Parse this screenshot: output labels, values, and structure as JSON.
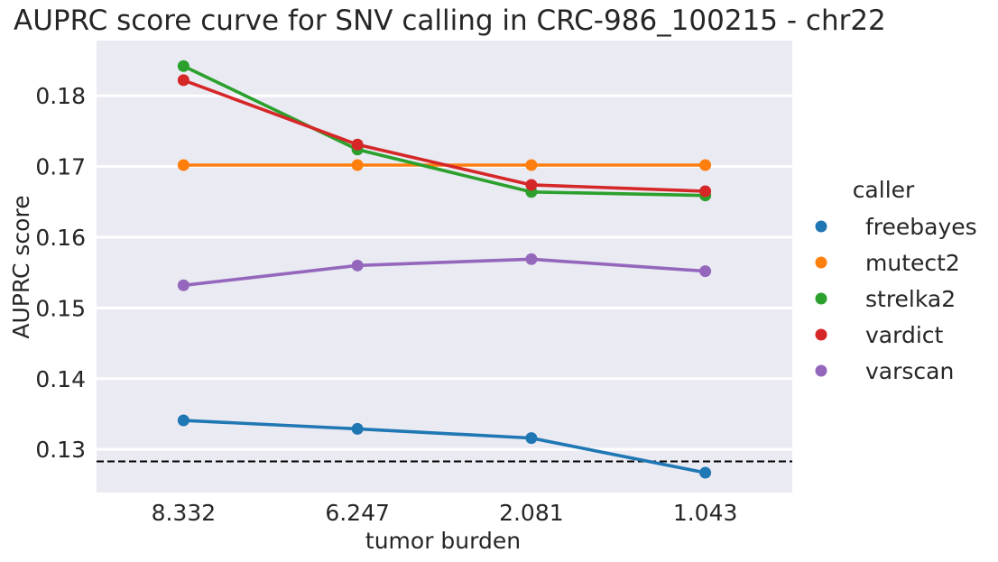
{
  "chart_data": {
    "type": "line",
    "title": "AUPRC score curve for SNV calling in CRC-986_100215 - chr22",
    "xlabel": "tumor burden",
    "ylabel": "AUPRC score",
    "categories": [
      "8.332",
      "6.247",
      "2.081",
      "1.043"
    ],
    "ylim": [
      0.1239,
      0.1878
    ],
    "yticks": [
      0.13,
      0.14,
      0.15,
      0.16,
      0.17,
      0.18
    ],
    "ytick_labels": [
      "0.13",
      "0.14",
      "0.15",
      "0.16",
      "0.17",
      "0.18"
    ],
    "grid": true,
    "legend": {
      "title": "caller",
      "placement": "right"
    },
    "reference_line": {
      "value": 0.1283,
      "style": "dashed",
      "color": "#000000"
    },
    "series": [
      {
        "name": "freebayes",
        "color": "#1f77b4",
        "values": [
          0.1341,
          0.1329,
          0.1316,
          0.1267
        ]
      },
      {
        "name": "mutect2",
        "color": "#ff7f0e",
        "values": [
          0.1702,
          0.1702,
          0.1702,
          0.1702
        ]
      },
      {
        "name": "strelka2",
        "color": "#2ca02c",
        "values": [
          0.1842,
          0.1724,
          0.1664,
          0.1659
        ]
      },
      {
        "name": "vardict",
        "color": "#d62728",
        "values": [
          0.1822,
          0.1731,
          0.1674,
          0.1665
        ]
      },
      {
        "name": "varscan",
        "color": "#9467bd",
        "values": [
          0.1532,
          0.156,
          0.1569,
          0.1552
        ]
      }
    ]
  }
}
